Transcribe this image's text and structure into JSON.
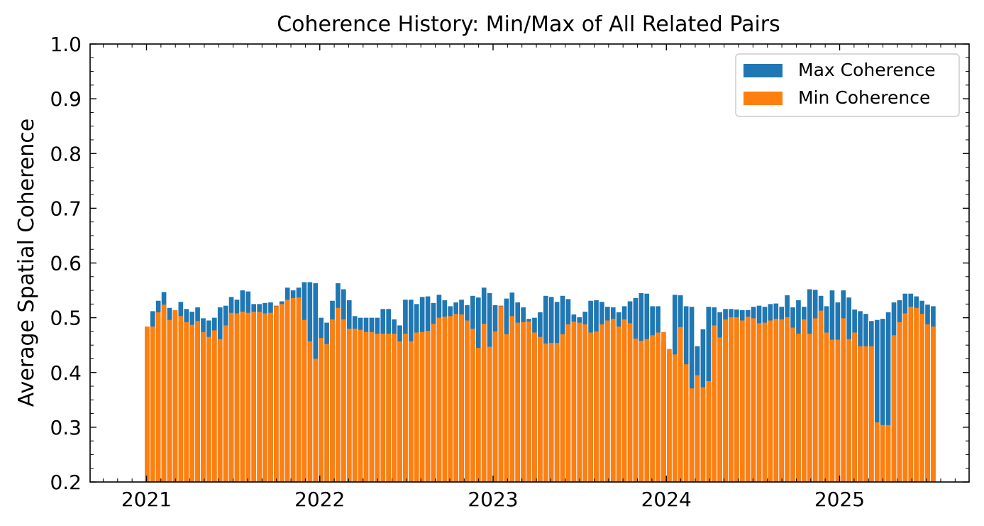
{
  "chart_data": {
    "type": "bar",
    "title": "Coherence History: Min/Max of All Related Pairs",
    "xlabel": "",
    "ylabel": "Average Spatial Coherence",
    "ylim": [
      0.2,
      1.0
    ],
    "yticks": [
      "0.2",
      "0.3",
      "0.4",
      "0.5",
      "0.6",
      "0.7",
      "0.8",
      "0.9",
      "1.0"
    ],
    "xticks": [
      "2021",
      "2022",
      "2023",
      "2024",
      "2025"
    ],
    "grid": false,
    "legend_position": "top-right",
    "colors": {
      "max": "#1f77b4",
      "min": "#ff7f0e"
    },
    "series": [
      {
        "name": "Max Coherence",
        "values": [
          0.484,
          0.512,
          0.531,
          0.547,
          0.518,
          0.512,
          0.529,
          0.516,
          0.511,
          0.519,
          0.499,
          0.495,
          0.5,
          0.519,
          0.522,
          0.538,
          0.533,
          0.55,
          0.548,
          0.525,
          0.525,
          0.527,
          0.528,
          0.522,
          0.53,
          0.555,
          0.55,
          0.555,
          0.565,
          0.565,
          0.563,
          0.5,
          0.491,
          0.531,
          0.563,
          0.552,
          0.532,
          0.503,
          0.5,
          0.5,
          0.5,
          0.5,
          0.516,
          0.516,
          0.497,
          0.486,
          0.533,
          0.533,
          0.525,
          0.538,
          0.539,
          0.527,
          0.542,
          0.532,
          0.521,
          0.528,
          0.533,
          0.523,
          0.54,
          0.537,
          0.555,
          0.545,
          0.523,
          0.522,
          0.535,
          0.546,
          0.528,
          0.519,
          0.498,
          0.5,
          0.51,
          0.54,
          0.538,
          0.529,
          0.54,
          0.534,
          0.506,
          0.501,
          0.511,
          0.531,
          0.532,
          0.529,
          0.52,
          0.519,
          0.51,
          0.521,
          0.53,
          0.536,
          0.545,
          0.544,
          0.521,
          0.521,
          0.456,
          0.435,
          0.542,
          0.541,
          0.521,
          0.52,
          0.448,
          0.479,
          0.52,
          0.519,
          0.51,
          0.516,
          0.516,
          0.515,
          0.514,
          0.514,
          0.52,
          0.522,
          0.52,
          0.525,
          0.526,
          0.52,
          0.541,
          0.519,
          0.532,
          0.52,
          0.552,
          0.551,
          0.54,
          0.521,
          0.55,
          0.528,
          0.55,
          0.537,
          0.515,
          0.512,
          0.507,
          0.494,
          0.496,
          0.498,
          0.51,
          0.528,
          0.532,
          0.544,
          0.544,
          0.539,
          0.531,
          0.524,
          0.521
        ]
      },
      {
        "name": "Min Coherence",
        "values": [
          0.484,
          0.484,
          0.51,
          0.524,
          0.496,
          0.514,
          0.503,
          0.492,
          0.487,
          0.494,
          0.474,
          0.465,
          0.477,
          0.461,
          0.486,
          0.509,
          0.508,
          0.511,
          0.509,
          0.511,
          0.511,
          0.508,
          0.509,
          0.521,
          0.525,
          0.533,
          0.536,
          0.537,
          0.496,
          0.457,
          0.425,
          0.463,
          0.452,
          0.497,
          0.518,
          0.497,
          0.48,
          0.48,
          0.478,
          0.474,
          0.474,
          0.471,
          0.471,
          0.471,
          0.471,
          0.457,
          0.471,
          0.457,
          0.473,
          0.474,
          0.476,
          0.489,
          0.5,
          0.502,
          0.503,
          0.507,
          0.506,
          0.495,
          0.48,
          0.445,
          0.489,
          0.447,
          0.475,
          0.521,
          0.47,
          0.503,
          0.491,
          0.492,
          0.493,
          0.473,
          0.465,
          0.453,
          0.454,
          0.454,
          0.47,
          0.488,
          0.493,
          0.491,
          0.488,
          0.473,
          0.475,
          0.488,
          0.495,
          0.498,
          0.484,
          0.497,
          0.49,
          0.462,
          0.458,
          0.461,
          0.468,
          0.473,
          0.474,
          0.443,
          0.433,
          0.483,
          0.415,
          0.371,
          0.395,
          0.373,
          0.384,
          0.486,
          0.464,
          0.497,
          0.501,
          0.501,
          0.495,
          0.502,
          0.499,
          0.49,
          0.491,
          0.495,
          0.498,
          0.497,
          0.501,
          0.482,
          0.471,
          0.497,
          0.471,
          0.499,
          0.513,
          0.473,
          0.46,
          0.46,
          0.499,
          0.461,
          0.473,
          0.448,
          0.448,
          0.448,
          0.309,
          0.304,
          0.304,
          0.468,
          0.492,
          0.508,
          0.52,
          0.518,
          0.507,
          0.488,
          0.484
        ]
      }
    ]
  }
}
